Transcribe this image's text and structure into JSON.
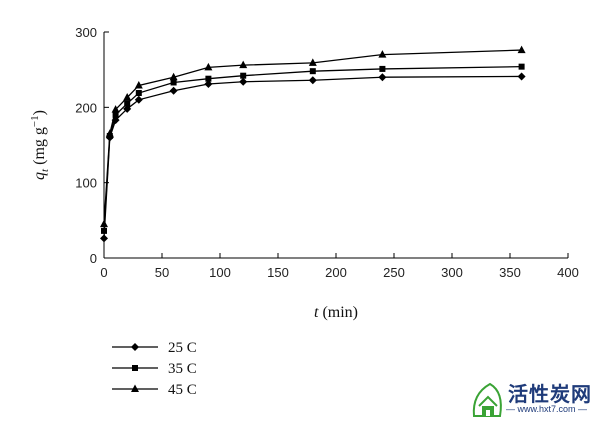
{
  "chart_data": {
    "type": "line",
    "xlabel_italic": "t",
    "xlabel_rest": " (min)",
    "ylabel_italic": "q",
    "ylabel_sub": "t",
    "ylabel_rest": " (mg g",
    "ylabel_sup": "−1",
    "ylabel_close": ")",
    "xlim": [
      0,
      400
    ],
    "ylim": [
      0,
      300
    ],
    "xticks": [
      0,
      50,
      100,
      150,
      200,
      250,
      300,
      350,
      400
    ],
    "yticks": [
      0,
      100,
      200,
      300
    ],
    "grid": false,
    "legend_position": "bottom-left",
    "series": [
      {
        "name": "25 C",
        "marker": "diamond",
        "x": [
          0,
          5,
          10,
          20,
          30,
          60,
          90,
          120,
          180,
          240,
          360
        ],
        "y": [
          26,
          160,
          183,
          198,
          210,
          222,
          231,
          234,
          236,
          240,
          241
        ]
      },
      {
        "name": "35 C",
        "marker": "square",
        "x": [
          0,
          5,
          10,
          20,
          30,
          60,
          90,
          120,
          180,
          240,
          360
        ],
        "y": [
          36,
          162,
          190,
          205,
          219,
          233,
          238,
          242,
          248,
          251,
          254
        ]
      },
      {
        "name": "45 C",
        "marker": "triangle",
        "x": [
          0,
          5,
          10,
          20,
          30,
          60,
          90,
          120,
          180,
          240,
          360
        ],
        "y": [
          45,
          165,
          197,
          213,
          229,
          240,
          253,
          256,
          259,
          270,
          276
        ]
      }
    ]
  },
  "watermark": {
    "title": "活性炭网",
    "url": "— www.hxt7.com —"
  }
}
